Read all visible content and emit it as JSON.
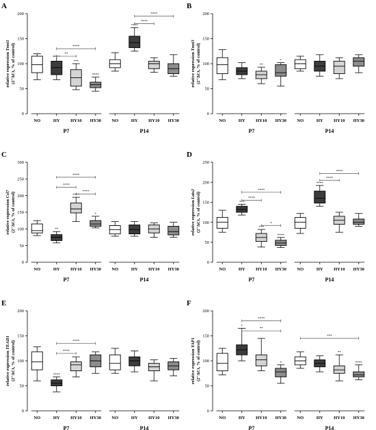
{
  "colors": {
    "NO": "#ffffff",
    "HY": "#3c3c3c",
    "HY10": "#d4d4d4",
    "HY30": "#8c8c8c",
    "stroke": "#000000"
  },
  "chart_data": [
    {
      "panel": "A",
      "type": "box",
      "ylabel_main": "relative expression ",
      "ylabel_gene": "Tnni1",
      "ylabel_sub": "(2⁻ΔCt, % of control)",
      "ylim": [
        0,
        200
      ],
      "yticks": [
        0,
        50,
        100,
        150,
        200
      ],
      "groups": [
        {
          "label": "P7",
          "boxes": [
            {
              "cat": "NO",
              "whisker_low": 68,
              "q1": 82,
              "median": 98,
              "q3": 115,
              "whisker_high": 120,
              "sig": ""
            },
            {
              "cat": "HY",
              "whisker_low": 68,
              "q1": 78,
              "median": 92,
              "q3": 105,
              "whisker_high": 115,
              "sig": ""
            },
            {
              "cat": "HY10",
              "whisker_low": 48,
              "q1": 55,
              "median": 72,
              "q3": 88,
              "whisker_high": 100,
              "sig": "***"
            },
            {
              "cat": "HY30",
              "whisker_low": 45,
              "q1": 52,
              "median": 58,
              "q3": 63,
              "whisker_high": 73,
              "sig": "****"
            }
          ]
        },
        {
          "label": "P14",
          "boxes": [
            {
              "cat": "NO",
              "whisker_low": 85,
              "q1": 92,
              "median": 100,
              "q3": 108,
              "whisker_high": 122,
              "sig": ""
            },
            {
              "cat": "HY",
              "whisker_low": 125,
              "q1": 132,
              "median": 142,
              "q3": 155,
              "whisker_high": 172,
              "sig": "****"
            },
            {
              "cat": "HY10",
              "whisker_low": 83,
              "q1": 90,
              "median": 100,
              "q3": 105,
              "whisker_high": 112,
              "sig": ""
            },
            {
              "cat": "HY30",
              "whisker_low": 75,
              "q1": 80,
              "median": 90,
              "q3": 100,
              "whisker_high": 118,
              "sig": ""
            }
          ]
        }
      ],
      "brackets": [
        {
          "group": 0,
          "from": 1,
          "to": 2,
          "y": 115,
          "label": "**"
        },
        {
          "group": 0,
          "from": 1,
          "to": 3,
          "y": 130,
          "label": "****"
        },
        {
          "group": 1,
          "from": 1,
          "to": 2,
          "y": 180,
          "label": "****"
        },
        {
          "group": 1,
          "from": 1,
          "to": 3,
          "y": 195,
          "label": "****"
        }
      ]
    },
    {
      "panel": "B",
      "type": "box",
      "ylabel_main": "relative expression ",
      "ylabel_gene": "Tnni3",
      "ylabel_sub": "(2⁻ΔCt, % of control)",
      "ylim": [
        0,
        200
      ],
      "yticks": [
        0,
        50,
        100,
        150,
        200
      ],
      "groups": [
        {
          "label": "P7",
          "boxes": [
            {
              "cat": "NO",
              "whisker_low": 68,
              "q1": 80,
              "median": 98,
              "q3": 112,
              "whisker_high": 128,
              "sig": ""
            },
            {
              "cat": "HY",
              "whisker_low": 70,
              "q1": 78,
              "median": 85,
              "q3": 92,
              "whisker_high": 102,
              "sig": ""
            },
            {
              "cat": "HY10",
              "whisker_low": 60,
              "q1": 70,
              "median": 78,
              "q3": 85,
              "whisker_high": 93,
              "sig": "**"
            },
            {
              "cat": "HY30",
              "whisker_low": 55,
              "q1": 75,
              "median": 82,
              "q3": 98,
              "whisker_high": 102,
              "sig": "*"
            }
          ]
        },
        {
          "group_note": "",
          "label": "P14",
          "boxes": [
            {
              "cat": "NO",
              "whisker_low": 85,
              "q1": 90,
              "median": 100,
              "q3": 108,
              "whisker_high": 115,
              "sig": ""
            },
            {
              "cat": "HY",
              "whisker_low": 75,
              "q1": 85,
              "median": 95,
              "q3": 105,
              "whisker_high": 118,
              "sig": ""
            },
            {
              "cat": "HY10",
              "whisker_low": 70,
              "q1": 80,
              "median": 95,
              "q3": 105,
              "whisker_high": 112,
              "sig": ""
            },
            {
              "cat": "HY30",
              "whisker_low": 82,
              "q1": 95,
              "median": 105,
              "q3": 112,
              "whisker_high": 118,
              "sig": ""
            }
          ]
        }
      ],
      "brackets": []
    },
    {
      "panel": "C",
      "type": "box",
      "ylabel_main": "relative expression ",
      "ylabel_gene": "Csl7",
      "ylabel_sub": "(2⁻ΔCt, % of control)",
      "ylim": [
        0,
        300
      ],
      "yticks": [
        0,
        50,
        100,
        150,
        200,
        250,
        300
      ],
      "groups": [
        {
          "label": "P7",
          "boxes": [
            {
              "cat": "NO",
              "whisker_low": 80,
              "q1": 88,
              "median": 95,
              "q3": 115,
              "whisker_high": 125,
              "sig": ""
            },
            {
              "cat": "HY",
              "whisker_low": 58,
              "q1": 65,
              "median": 75,
              "q3": 83,
              "whisker_high": 92,
              "sig": "**"
            },
            {
              "cat": "HY10",
              "whisker_low": 122,
              "q1": 148,
              "median": 160,
              "q3": 178,
              "whisker_high": 195,
              "sig": "****"
            },
            {
              "cat": "HY30",
              "whisker_low": 103,
              "q1": 108,
              "median": 115,
              "q3": 125,
              "whisker_high": 138,
              "sig": "*"
            }
          ]
        },
        {
          "label": "P14",
          "boxes": [
            {
              "cat": "NO",
              "whisker_low": 78,
              "q1": 85,
              "median": 98,
              "q3": 110,
              "whisker_high": 122,
              "sig": ""
            },
            {
              "cat": "HY",
              "whisker_low": 78,
              "q1": 85,
              "median": 98,
              "q3": 112,
              "whisker_high": 122,
              "sig": ""
            },
            {
              "cat": "HY10",
              "whisker_low": 75,
              "q1": 88,
              "median": 100,
              "q3": 112,
              "whisker_high": 118,
              "sig": ""
            },
            {
              "cat": "HY30",
              "whisker_low": 75,
              "q1": 82,
              "median": 92,
              "q3": 108,
              "whisker_high": 120,
              "sig": ""
            }
          ]
        }
      ],
      "brackets": [
        {
          "group": 0,
          "from": 2,
          "to": 3,
          "y": 205,
          "label": "****"
        },
        {
          "group": 0,
          "from": 1,
          "to": 2,
          "y": 225,
          "label": "****"
        },
        {
          "group": 0,
          "from": 1,
          "to": 3,
          "y": 255,
          "label": "****"
        }
      ]
    },
    {
      "panel": "D",
      "type": "box",
      "ylabel_main": "relative expression ",
      "ylabel_gene": "Lats2",
      "ylabel_sub": "(2⁻ΔCt, % of control)",
      "ylim": [
        0,
        250
      ],
      "yticks": [
        0,
        50,
        100,
        150,
        200,
        250
      ],
      "groups": [
        {
          "label": "P7",
          "boxes": [
            {
              "cat": "NO",
              "whisker_low": 75,
              "q1": 85,
              "median": 100,
              "q3": 112,
              "whisker_high": 130,
              "sig": ""
            },
            {
              "cat": "HY",
              "whisker_low": 118,
              "q1": 125,
              "median": 132,
              "q3": 140,
              "whisker_high": 145,
              "sig": "***"
            },
            {
              "cat": "HY10",
              "whisker_low": 38,
              "q1": 52,
              "median": 62,
              "q3": 72,
              "whisker_high": 82,
              "sig": "***"
            },
            {
              "cat": "HY30",
              "whisker_low": 37,
              "q1": 42,
              "median": 48,
              "q3": 55,
              "whisker_high": 62,
              "sig": "****"
            }
          ]
        },
        {
          "label": "P14",
          "boxes": [
            {
              "cat": "NO",
              "whisker_low": 72,
              "q1": 85,
              "median": 100,
              "q3": 112,
              "whisker_high": 122,
              "sig": ""
            },
            {
              "cat": "HY",
              "whisker_low": 140,
              "q1": 148,
              "median": 160,
              "q3": 178,
              "whisker_high": 192,
              "sig": "****"
            },
            {
              "cat": "HY10",
              "whisker_low": 75,
              "q1": 95,
              "median": 105,
              "q3": 115,
              "whisker_high": 125,
              "sig": ""
            },
            {
              "cat": "HY30",
              "whisker_low": 90,
              "q1": 95,
              "median": 100,
              "q3": 108,
              "whisker_high": 122,
              "sig": ""
            }
          ]
        }
      ],
      "brackets": [
        {
          "group": 0,
          "from": 2,
          "to": 3,
          "y": 92,
          "label": "*"
        },
        {
          "group": 0,
          "from": 1,
          "to": 2,
          "y": 155,
          "label": "****"
        },
        {
          "group": 0,
          "from": 1,
          "to": 3,
          "y": 175,
          "label": "****"
        },
        {
          "group": 1,
          "from": 1,
          "to": 2,
          "y": 205,
          "label": "****"
        },
        {
          "group": 1,
          "from": 1,
          "to": 3,
          "y": 222,
          "label": "****"
        }
      ]
    },
    {
      "panel": "E",
      "type": "box",
      "ylabel_main": "relative expression ",
      "ylabel_gene": "TEAD1",
      "ylabel_sub": "(2⁻ΔCt, % of control)",
      "ylim": [
        0,
        200
      ],
      "yticks": [
        0,
        50,
        100,
        150,
        200
      ],
      "groups": [
        {
          "label": "P7",
          "boxes": [
            {
              "cat": "NO",
              "whisker_low": 60,
              "q1": 82,
              "median": 98,
              "q3": 118,
              "whisker_high": 128,
              "sig": ""
            },
            {
              "cat": "HY",
              "whisker_low": 38,
              "q1": 50,
              "median": 55,
              "q3": 62,
              "whisker_high": 68,
              "sig": "****"
            },
            {
              "cat": "HY10",
              "whisker_low": 68,
              "q1": 80,
              "median": 92,
              "q3": 98,
              "whisker_high": 108,
              "sig": ""
            },
            {
              "cat": "HY30",
              "whisker_low": 75,
              "q1": 88,
              "median": 100,
              "q3": 112,
              "whisker_high": 118,
              "sig": ""
            }
          ]
        },
        {
          "label": "P14",
          "boxes": [
            {
              "cat": "NO",
              "whisker_low": 75,
              "q1": 82,
              "median": 95,
              "q3": 112,
              "whisker_high": 125,
              "sig": ""
            },
            {
              "cat": "HY",
              "whisker_low": 78,
              "q1": 90,
              "median": 100,
              "q3": 108,
              "whisker_high": 120,
              "sig": ""
            },
            {
              "cat": "HY10",
              "whisker_low": 60,
              "q1": 80,
              "median": 88,
              "q3": 95,
              "whisker_high": 102,
              "sig": ""
            },
            {
              "cat": "HY30",
              "whisker_low": 70,
              "q1": 82,
              "median": 90,
              "q3": 98,
              "whisker_high": 105,
              "sig": ""
            }
          ]
        }
      ],
      "brackets": [
        {
          "group": 0,
          "from": 1,
          "to": 2,
          "y": 115,
          "label": "****"
        },
        {
          "group": 0,
          "from": 1,
          "to": 3,
          "y": 135,
          "label": "****"
        }
      ]
    },
    {
      "panel": "F",
      "type": "box",
      "ylabel_main": "relative expression ",
      "ylabel_gene": "YAP1",
      "ylabel_sub": "(2⁻ΔCt, % of control)",
      "ylim": [
        0,
        200
      ],
      "yticks": [
        0,
        50,
        100,
        150,
        200
      ],
      "groups": [
        {
          "label": "P7",
          "boxes": [
            {
              "cat": "NO",
              "whisker_low": 72,
              "q1": 80,
              "median": 95,
              "q3": 115,
              "whisker_high": 125,
              "sig": ""
            },
            {
              "cat": "HY",
              "whisker_low": 100,
              "q1": 112,
              "median": 122,
              "q3": 132,
              "whisker_high": 165,
              "sig": "*"
            },
            {
              "cat": "HY10",
              "whisker_low": 80,
              "q1": 90,
              "median": 102,
              "q3": 112,
              "whisker_high": 145,
              "sig": ""
            },
            {
              "cat": "HY30",
              "whisker_low": 55,
              "q1": 68,
              "median": 78,
              "q3": 85,
              "whisker_high": 92,
              "sig": "*"
            }
          ]
        },
        {
          "label": "P14",
          "boxes": [
            {
              "cat": "NO",
              "whisker_low": 85,
              "q1": 92,
              "median": 100,
              "q3": 108,
              "whisker_high": 118,
              "sig": ""
            },
            {
              "cat": "HY",
              "whisker_low": 78,
              "q1": 88,
              "median": 95,
              "q3": 102,
              "whisker_high": 110,
              "sig": ""
            },
            {
              "cat": "HY10",
              "whisker_low": 60,
              "q1": 75,
              "median": 82,
              "q3": 90,
              "whisker_high": 112,
              "sig": "**"
            },
            {
              "cat": "HY30",
              "whisker_low": 62,
              "q1": 68,
              "median": 72,
              "q3": 78,
              "whisker_high": 92,
              "sig": "****"
            }
          ]
        }
      ],
      "brackets": [
        {
          "group": 0,
          "from": 1,
          "to": 3,
          "y": 160,
          "label": "**"
        },
        {
          "group": 0,
          "from": 1,
          "to": 3,
          "y": 180,
          "label": "****"
        },
        {
          "group": 1,
          "from": 0,
          "to": 3,
          "y": 145,
          "label": "***"
        }
      ]
    }
  ]
}
